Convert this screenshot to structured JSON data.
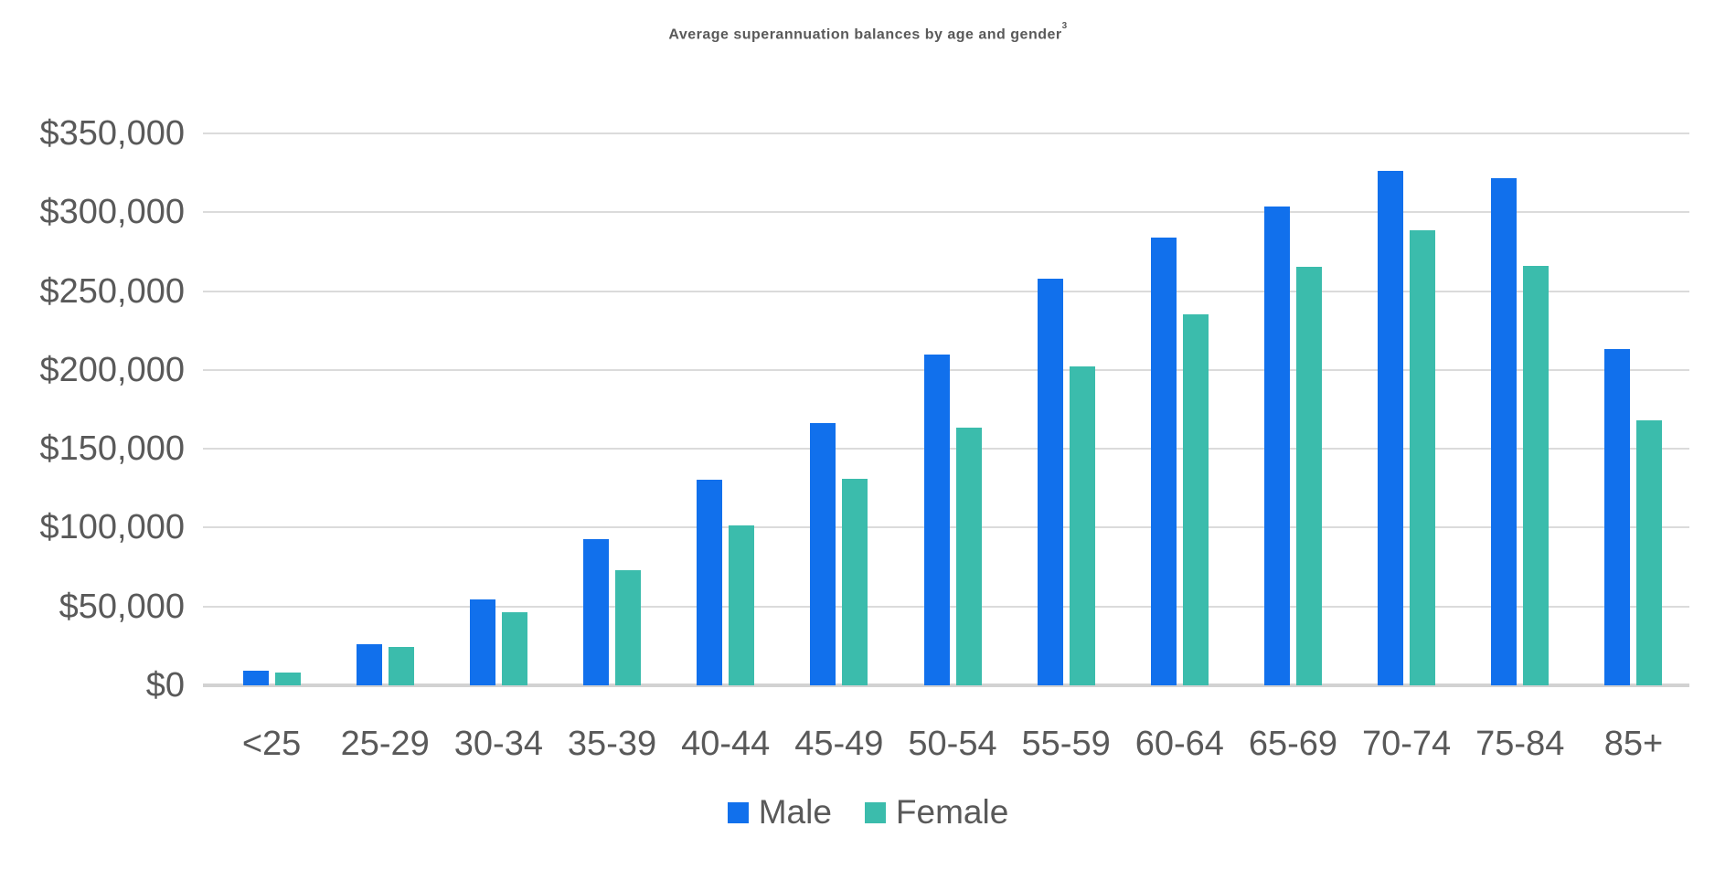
{
  "title": {
    "text": "Average superannuation balances by age and gender",
    "superscript": "3"
  },
  "colors": {
    "male": "#1170EC",
    "female": "#3BBCAC",
    "text": "#595959",
    "gridline": "#DBDBDB",
    "axisline": "#D2D2D2",
    "background": "#FFFFFF"
  },
  "legend": {
    "items": [
      "Male",
      "Female"
    ]
  },
  "chart_data": {
    "type": "bar",
    "title": "Average superannuation balances by age and gender³",
    "categories": [
      "<25",
      "25-29",
      "30-34",
      "35-39",
      "40-44",
      "45-49",
      "50-54",
      "55-59",
      "60-64",
      "65-69",
      "70-74",
      "75-84",
      "85+"
    ],
    "series": [
      {
        "name": "Male",
        "color": "#1170EC",
        "values": [
          9500,
          26000,
          54500,
          93000,
          130500,
          166500,
          210000,
          258000,
          284000,
          303500,
          326000,
          321500,
          213000
        ]
      },
      {
        "name": "Female",
        "color": "#3BBCAC",
        "values": [
          8000,
          24500,
          46500,
          73000,
          101500,
          131000,
          163500,
          202500,
          235000,
          265500,
          288500,
          266000,
          168000
        ]
      }
    ],
    "xlabel": "",
    "ylabel": "",
    "ylim": [
      0,
      350000
    ],
    "ytick_step": 50000,
    "ytick_labels": [
      "$0",
      "$50,000",
      "$100,000",
      "$150,000",
      "$200,000",
      "$250,000",
      "$300,000",
      "$350,000"
    ],
    "grid": true,
    "legend_position": "bottom"
  }
}
